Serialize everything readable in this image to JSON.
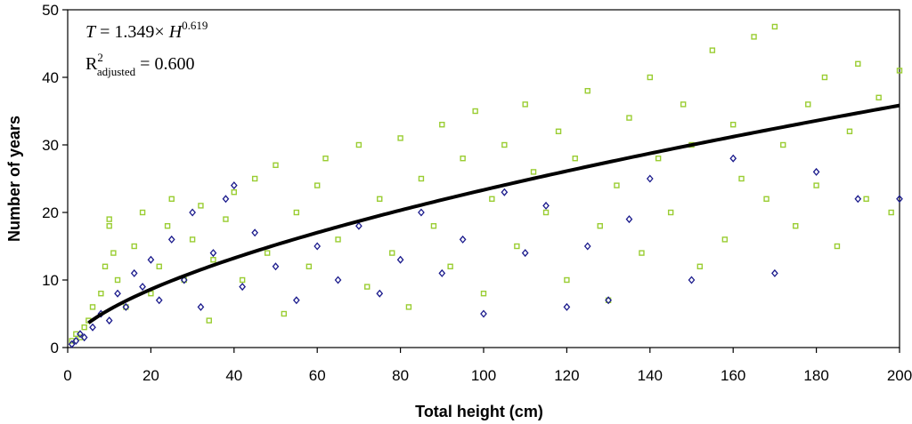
{
  "chart_data": {
    "type": "scatter",
    "title": "",
    "xlabel": "Total height (cm)",
    "ylabel": "Number of years",
    "xlim": [
      0,
      200
    ],
    "ylim": [
      0,
      50
    ],
    "xticks": [
      0,
      20,
      40,
      60,
      80,
      100,
      120,
      140,
      160,
      180,
      200
    ],
    "yticks": [
      0,
      10,
      20,
      30,
      40,
      50
    ],
    "grid": false,
    "annotations": {
      "equation_lhs": "T",
      "equation_eq": " = 1.349× ",
      "equation_var": "H",
      "equation_exp": "0.619",
      "r2_base": "R",
      "r2_sup": "2",
      "r2_sub": "adjusted",
      "r2_value": " = 0.600"
    },
    "fit_curve": {
      "name": "Power fit",
      "a": 1.349,
      "b": 0.619,
      "x_start": 5,
      "x_end": 200,
      "color": "#000000"
    },
    "series": [
      {
        "name": "Green squares",
        "marker": "square",
        "color": "#9acd32",
        "points": [
          [
            1,
            1
          ],
          [
            2,
            2
          ],
          [
            3,
            1.5
          ],
          [
            4,
            3
          ],
          [
            5,
            4
          ],
          [
            6,
            6
          ],
          [
            8,
            8
          ],
          [
            9,
            12
          ],
          [
            10,
            18
          ],
          [
            10,
            19
          ],
          [
            11,
            14
          ],
          [
            12,
            10
          ],
          [
            14,
            6
          ],
          [
            16,
            15
          ],
          [
            18,
            20
          ],
          [
            20,
            8
          ],
          [
            22,
            12
          ],
          [
            24,
            18
          ],
          [
            25,
            22
          ],
          [
            28,
            10
          ],
          [
            30,
            16
          ],
          [
            32,
            21
          ],
          [
            34,
            4
          ],
          [
            35,
            13
          ],
          [
            38,
            19
          ],
          [
            40,
            23
          ],
          [
            42,
            10
          ],
          [
            45,
            25
          ],
          [
            48,
            14
          ],
          [
            50,
            27
          ],
          [
            52,
            5
          ],
          [
            55,
            20
          ],
          [
            58,
            12
          ],
          [
            60,
            24
          ],
          [
            62,
            28
          ],
          [
            65,
            16
          ],
          [
            70,
            30
          ],
          [
            72,
            9
          ],
          [
            75,
            22
          ],
          [
            78,
            14
          ],
          [
            80,
            31
          ],
          [
            82,
            6
          ],
          [
            85,
            25
          ],
          [
            88,
            18
          ],
          [
            90,
            33
          ],
          [
            92,
            12
          ],
          [
            95,
            28
          ],
          [
            98,
            35
          ],
          [
            100,
            8
          ],
          [
            102,
            22
          ],
          [
            105,
            30
          ],
          [
            108,
            15
          ],
          [
            110,
            36
          ],
          [
            112,
            26
          ],
          [
            115,
            20
          ],
          [
            118,
            32
          ],
          [
            120,
            10
          ],
          [
            122,
            28
          ],
          [
            125,
            38
          ],
          [
            128,
            18
          ],
          [
            130,
            7
          ],
          [
            132,
            24
          ],
          [
            135,
            34
          ],
          [
            138,
            14
          ],
          [
            140,
            40
          ],
          [
            142,
            28
          ],
          [
            145,
            20
          ],
          [
            148,
            36
          ],
          [
            150,
            30
          ],
          [
            152,
            12
          ],
          [
            155,
            44
          ],
          [
            158,
            16
          ],
          [
            160,
            33
          ],
          [
            162,
            25
          ],
          [
            165,
            46
          ],
          [
            168,
            22
          ],
          [
            170,
            47.5
          ],
          [
            172,
            30
          ],
          [
            175,
            18
          ],
          [
            178,
            36
          ],
          [
            180,
            24
          ],
          [
            182,
            40
          ],
          [
            185,
            15
          ],
          [
            188,
            32
          ],
          [
            190,
            42
          ],
          [
            192,
            22
          ],
          [
            195,
            37
          ],
          [
            198,
            20
          ],
          [
            200,
            41
          ]
        ]
      },
      {
        "name": "Blue diamonds",
        "marker": "diamond",
        "color": "#1a1a8c",
        "points": [
          [
            1,
            0.5
          ],
          [
            2,
            1
          ],
          [
            3,
            2
          ],
          [
            4,
            1.5
          ],
          [
            6,
            3
          ],
          [
            8,
            5
          ],
          [
            10,
            4
          ],
          [
            12,
            8
          ],
          [
            14,
            6
          ],
          [
            16,
            11
          ],
          [
            18,
            9
          ],
          [
            20,
            13
          ],
          [
            22,
            7
          ],
          [
            25,
            16
          ],
          [
            28,
            10
          ],
          [
            30,
            20
          ],
          [
            32,
            6
          ],
          [
            35,
            14
          ],
          [
            38,
            22
          ],
          [
            40,
            24
          ],
          [
            42,
            9
          ],
          [
            45,
            17
          ],
          [
            50,
            12
          ],
          [
            55,
            7
          ],
          [
            60,
            15
          ],
          [
            65,
            10
          ],
          [
            70,
            18
          ],
          [
            75,
            8
          ],
          [
            80,
            13
          ],
          [
            85,
            20
          ],
          [
            90,
            11
          ],
          [
            95,
            16
          ],
          [
            100,
            5
          ],
          [
            105,
            23
          ],
          [
            110,
            14
          ],
          [
            115,
            21
          ],
          [
            120,
            6
          ],
          [
            125,
            15
          ],
          [
            130,
            7
          ],
          [
            135,
            19
          ],
          [
            140,
            25
          ],
          [
            150,
            10
          ],
          [
            160,
            28
          ],
          [
            170,
            11
          ],
          [
            180,
            26
          ],
          [
            190,
            22
          ],
          [
            200,
            22
          ]
        ]
      }
    ]
  }
}
